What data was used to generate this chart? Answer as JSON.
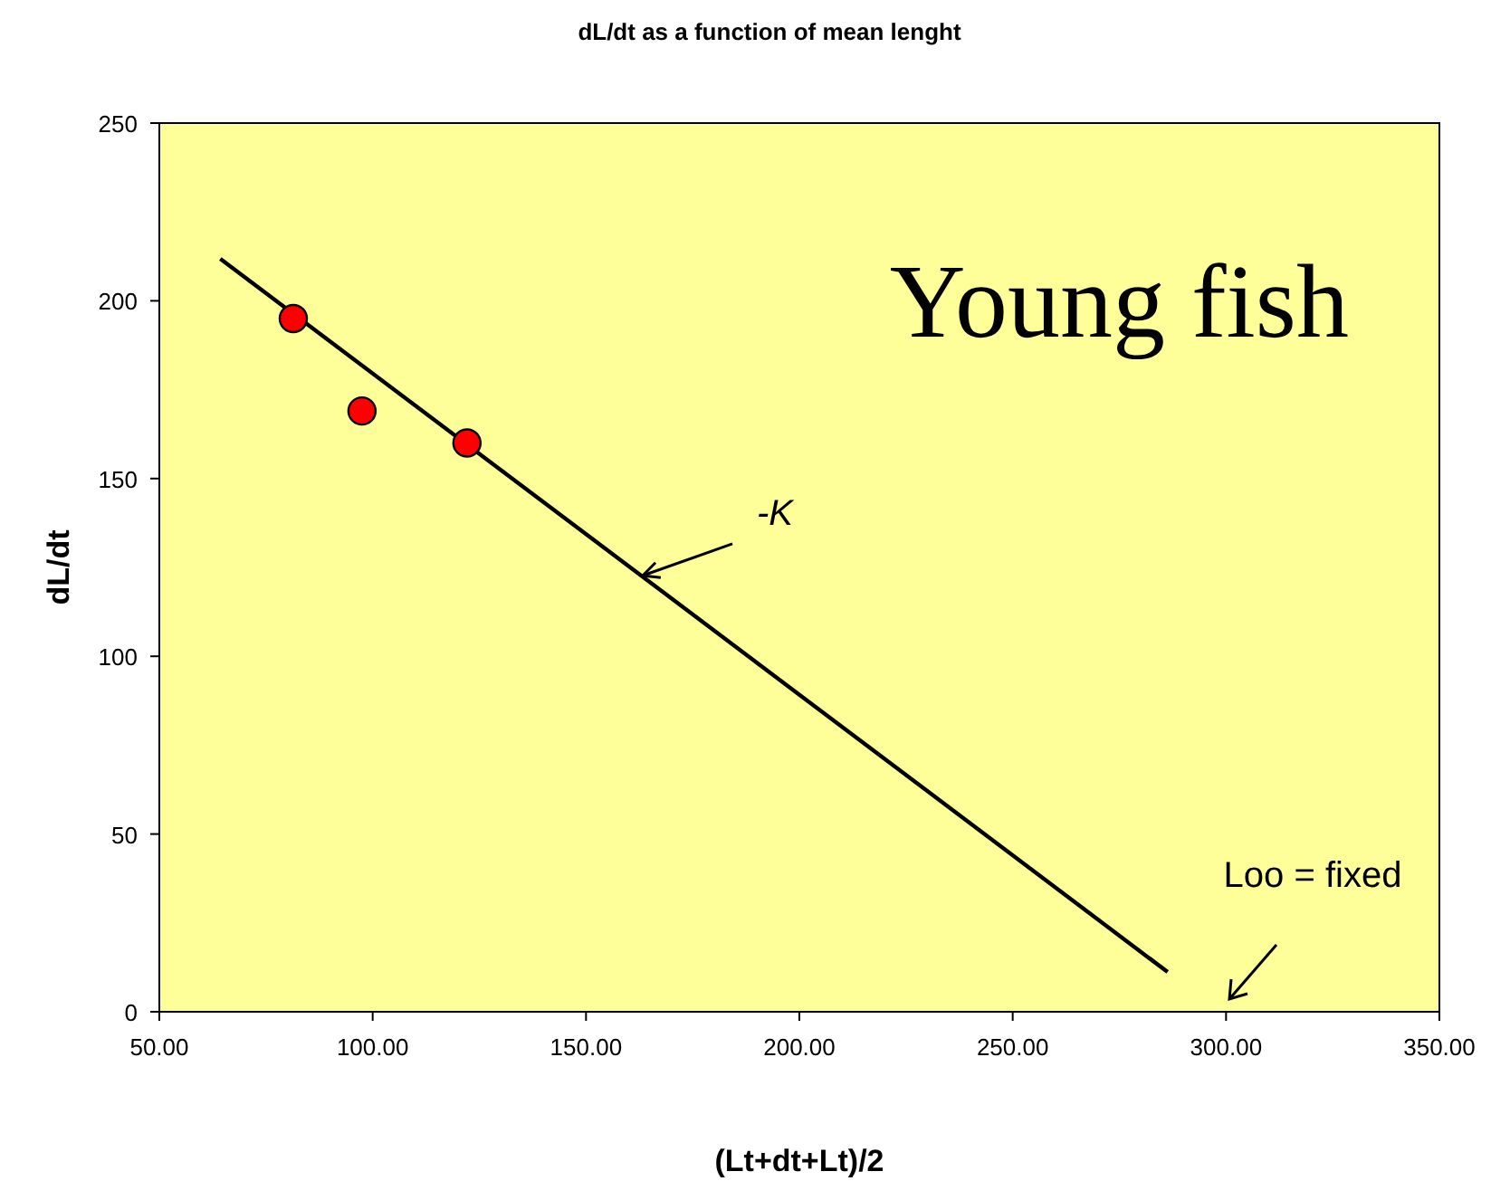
{
  "chart_data": {
    "type": "scatter",
    "title": "dL/dt as a function of mean lenght",
    "xlabel": "(Lt+dt+Lt)/2",
    "ylabel": "dL/dt",
    "xlim": [
      50,
      350
    ],
    "xticks": [
      {
        "value": 50,
        "label": "50.00"
      },
      {
        "value": 100,
        "label": "100.00"
      },
      {
        "value": 150,
        "label": "150.00"
      },
      {
        "value": 200,
        "label": "200.00"
      },
      {
        "value": 250,
        "label": "250.00"
      },
      {
        "value": 300,
        "label": "300.00"
      },
      {
        "value": 350,
        "label": "350.00"
      }
    ],
    "ylim": [
      0,
      250
    ],
    "yticks": [
      0,
      50,
      100,
      150,
      200,
      250
    ],
    "grid": false,
    "marker": "circle",
    "series": [
      {
        "type": "line",
        "color": "#000000",
        "x": [
          64.3,
          286.3
        ],
        "values": [
          211.8,
          11.2
        ],
        "marker": "none",
        "line_style": "solid"
      },
      {
        "color": "#ff0000",
        "x": [
          81.4,
          97.5,
          122.1
        ],
        "values": [
          195,
          169,
          160
        ]
      }
    ],
    "annotations": [
      "Young fish",
      {
        "text": "-K",
        "x": 163.3,
        "y": 122.7
      },
      "Loo = fixed"
    ]
  }
}
